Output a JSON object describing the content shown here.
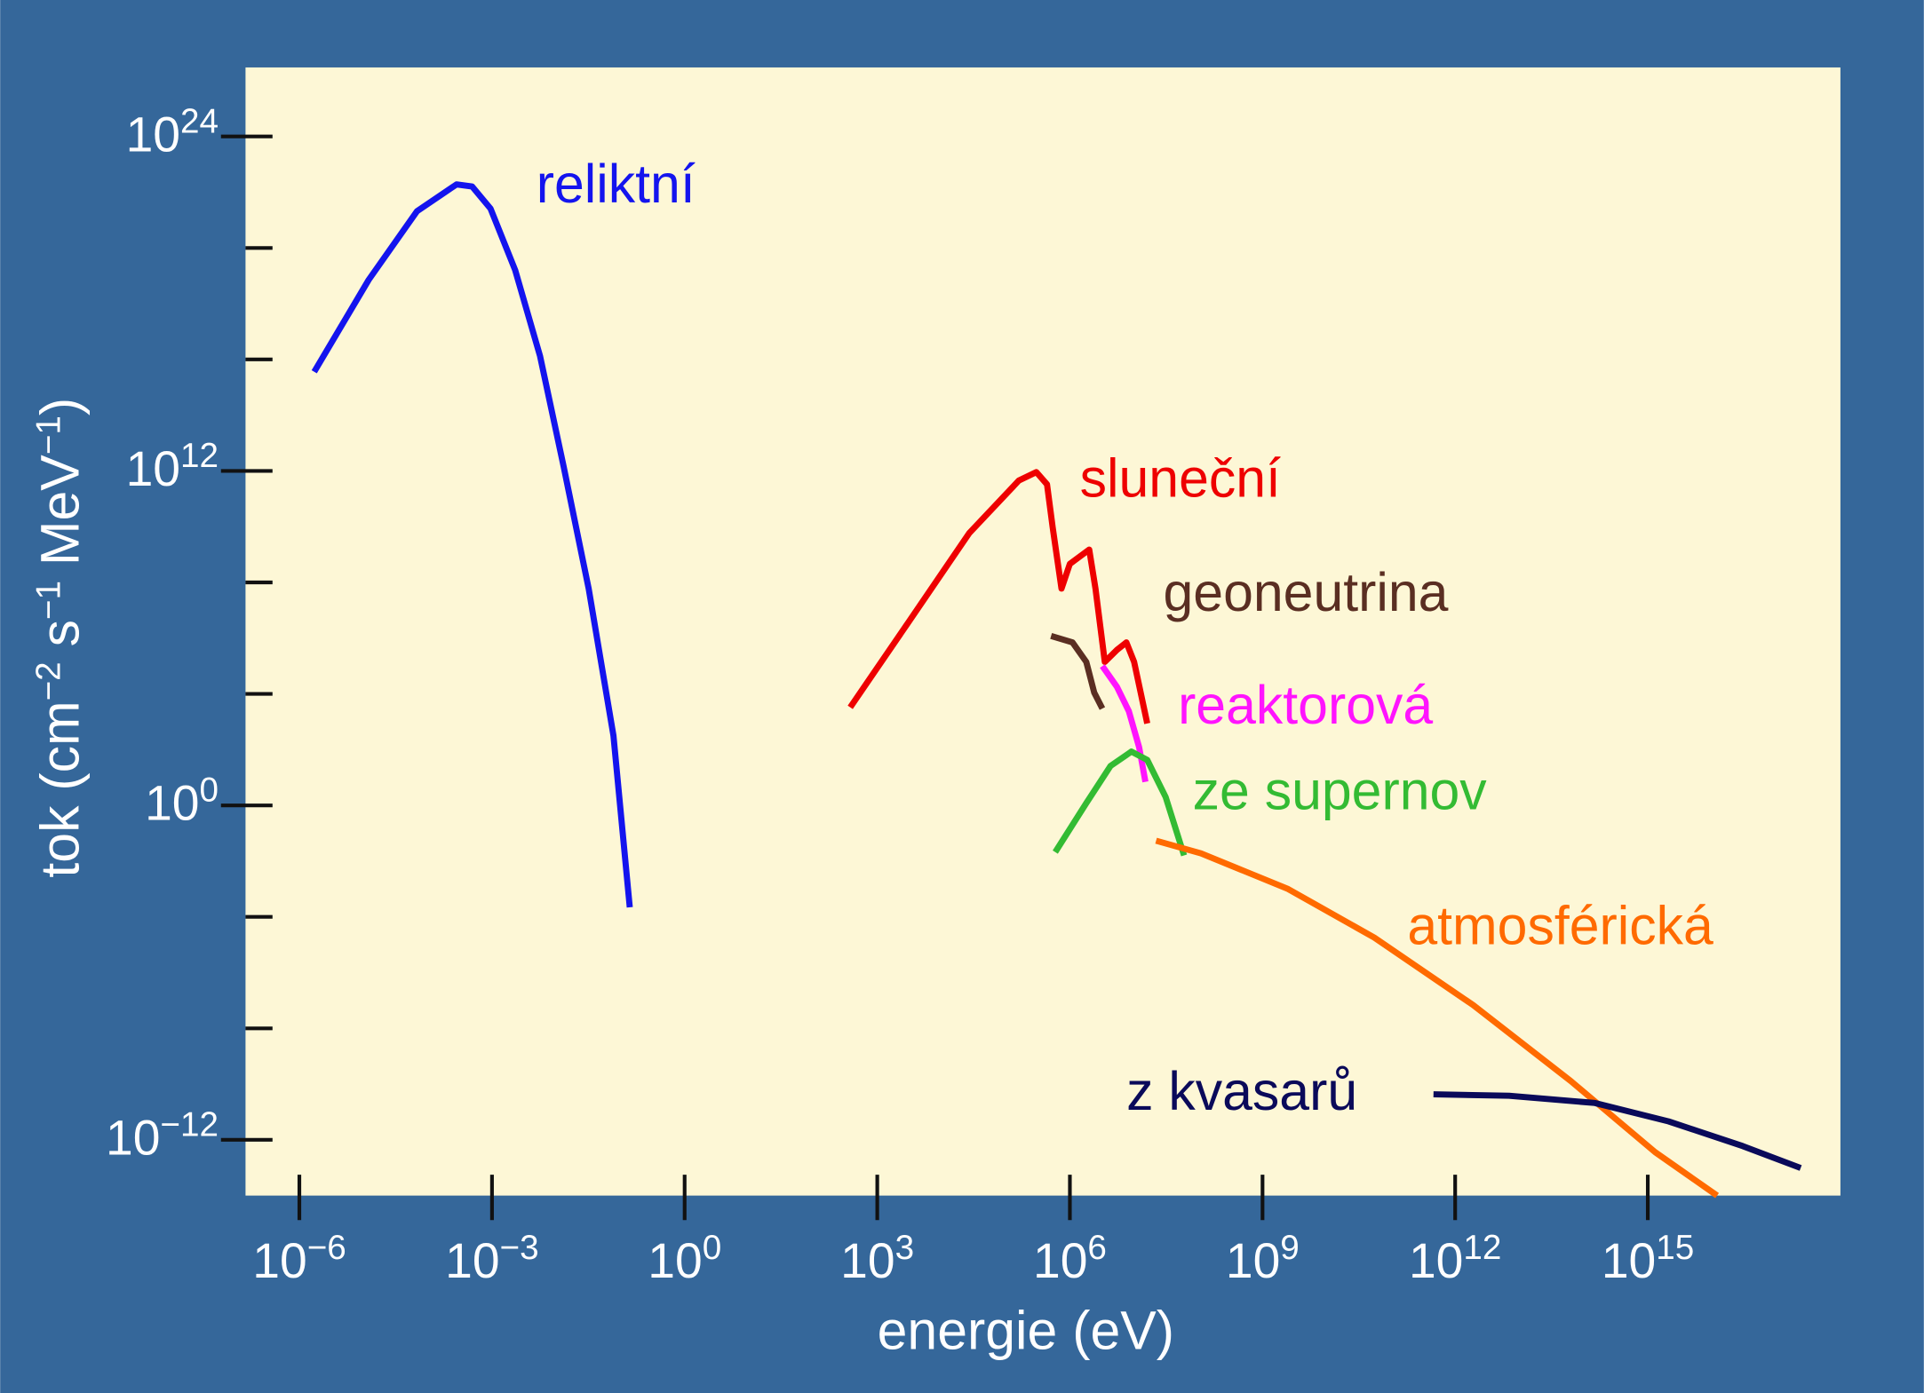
{
  "chart_data": {
    "type": "line",
    "x_label": "energie (eV)",
    "y_label": [
      {
        "text": "tok (cm"
      },
      {
        "text": "−2",
        "sup": true
      },
      {
        "text": " s"
      },
      {
        "text": "−1",
        "sup": true
      },
      {
        "text": " MeV"
      },
      {
        "text": "−1",
        "sup": true
      },
      {
        "text": ")"
      }
    ],
    "xlog": true,
    "ylog": true,
    "xlim": [
      1.45e-07,
      1e+18
    ],
    "ylim": [
      1e-14,
      3e+26
    ],
    "xticks": [
      {
        "value": 1e-06,
        "label": "10",
        "exponent": "−6"
      },
      {
        "value": 0.001,
        "label": "10",
        "exponent": "−3"
      },
      {
        "value": 1,
        "label": "10",
        "exponent": "0"
      },
      {
        "value": 1000.0,
        "label": "10",
        "exponent": "3"
      },
      {
        "value": 1000000.0,
        "label": "10",
        "exponent": "6"
      },
      {
        "value": 1000000000.0,
        "label": "10",
        "exponent": "9"
      },
      {
        "value": 1000000000000.0,
        "label": "10",
        "exponent": "12"
      },
      {
        "value": 1000000000000000.0,
        "label": "10",
        "exponent": "15"
      }
    ],
    "yticks": [
      {
        "value": 1e+24,
        "label": "10",
        "exponent": "24"
      },
      {
        "value": 1000000000000.0,
        "label": "10",
        "exponent": "12"
      },
      {
        "value": 1,
        "label": "10",
        "exponent": "0"
      },
      {
        "value": 1e-12,
        "label": "10",
        "exponent": "−12"
      }
    ],
    "yminor_ticks": [
      1e+20,
      1e+16,
      100000000.0,
      10000.0,
      0.0001,
      1e-08
    ],
    "series": [
      {
        "name": "reliktní",
        "color": "#1414ee",
        "x": [
          1.7e-06,
          1.2e-05,
          6.8e-05,
          0.00028,
          0.00049,
          0.00095,
          0.0023,
          0.0056,
          0.013,
          0.032,
          0.078,
          0.14
        ],
        "values": [
          3600000000000000.0,
          7.2e+18,
          2.1e+21,
          1.9e+22,
          1.6e+22,
          2.6e+21,
          1.6e+19,
          1.3e+16,
          1500000000000.0,
          60000000.0,
          320,
          0.00022
        ]
      },
      {
        "name": "sluneční",
        "color": "#ee0000",
        "x": [
          380,
          3000,
          27000,
          160000,
          300000,
          440000,
          540000,
          740000,
          1000000,
          2000000,
          2500000,
          3500000,
          5400000,
          7600000,
          10000000,
          16000000
        ],
        "values": [
          3300,
          3500000.0,
          5800000000.0,
          450000000000.0,
          910000000000.0,
          330000000000.0,
          9500000000.0,
          60000000.0,
          460000000.0,
          1500000000.0,
          60000000.0,
          140000,
          380000,
          700000,
          140000,
          870
        ]
      },
      {
        "name": "geoneutrina",
        "color": "#5a2e22",
        "x": [
          510000,
          1100000,
          1800000,
          2400000,
          3200000
        ],
        "values": [
          1200000,
          700000,
          140000,
          11000,
          3000
        ]
      },
      {
        "name": "reaktorová",
        "color": "#ff14ff",
        "x": [
          3200000,
          5400000,
          8300000,
          12000000,
          15000000
        ],
        "values": [
          100000,
          18000,
          2400,
          120,
          7
        ]
      },
      {
        "name": "ze supernov",
        "color": "#33bb33",
        "x": [
          590000,
          1800000,
          4300000,
          9100000,
          16000000,
          31000000,
          60000000
        ],
        "values": [
          0.021,
          1.2,
          26,
          85,
          43,
          2,
          0.016
        ]
      },
      {
        "name": "atmosférická",
        "color": "#ff6a00",
        "x": [
          22000000.0,
          110000000.0,
          2500000000.0,
          55000000000.0,
          1900000000000.0,
          63000000000000.0,
          1300000000000000.0,
          1.2e+16
        ],
        "values": [
          0.054,
          0.019,
          0.001,
          1.8e-05,
          6.9e-08,
          1.3e-10,
          3.6e-13,
          1e-14
        ]
      },
      {
        "name": "z kvasarů",
        "color": "#0a0a5a",
        "x": [
          460000000000.0,
          6900000000000.0,
          150000000000000.0,
          2100000000000000.0,
          3e+16,
          2.4e+17
        ],
        "values": [
          4.3e-11,
          3.8e-11,
          2.1e-11,
          4.6e-12,
          6e-13,
          9.8e-14
        ]
      }
    ]
  }
}
